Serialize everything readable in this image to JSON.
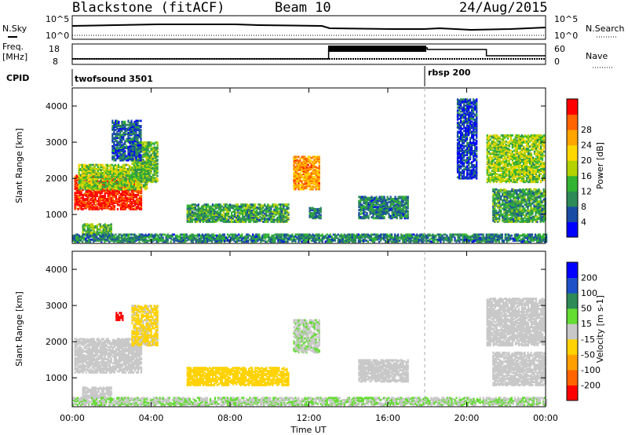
{
  "header": {
    "station": "Blackstone (fitACF)",
    "beam": "Beam 10",
    "date": "24/Aug/2015"
  },
  "noise_panel": {
    "left_label": "N.Sky",
    "right_label": "N.Search",
    "left_ticks": [
      "10^5",
      "10^0"
    ],
    "right_ticks": [
      "10^5",
      "10^0"
    ]
  },
  "freq_panel": {
    "left_label": "Freq.",
    "left_unit": "[MHz]",
    "right_label": "Nave",
    "left_ticks": [
      "18",
      "8"
    ],
    "right_ticks": [
      "60",
      "0"
    ],
    "freq_series": [
      {
        "t": 0,
        "f": 10
      },
      {
        "t": 13,
        "f": 10
      },
      {
        "t": 13,
        "f": 17
      },
      {
        "t": 18,
        "f": 17
      },
      {
        "t": 18,
        "f": 16
      },
      {
        "t": 21,
        "f": 16
      },
      {
        "t": 21,
        "f": 12
      },
      {
        "t": 24,
        "f": 12
      }
    ]
  },
  "cpid": {
    "label": "CPID",
    "modes": [
      {
        "name": "twofsound 3501",
        "start": 0
      },
      {
        "name": "rbsp 200",
        "start": 18
      }
    ]
  },
  "colors": {
    "power": [
      "#0000ff",
      "#1a4ba5",
      "#2e8b57",
      "#32b432",
      "#b4d200",
      "#ffd700",
      "#ffa500",
      "#ff6400",
      "#ff0000"
    ],
    "velocity": [
      "#0000ff",
      "#1e50c8",
      "#2e8b57",
      "#64dc32",
      "#c8c8c8",
      "#ffd200",
      "#ffa000",
      "#ff6400",
      "#ff0000"
    ]
  },
  "chart_data": [
    {
      "type": "heatmap",
      "name": "power",
      "ylabel": "Slant Range [km]",
      "ylim": [
        200,
        4500
      ],
      "xlim": [
        0,
        24
      ],
      "yticks": [
        "1000",
        "2000",
        "3000",
        "4000"
      ],
      "colorbar": {
        "label": "Power [dB]",
        "ticks": [
          "4",
          "8",
          "12",
          "16",
          "20",
          "24",
          "28"
        ],
        "range": [
          0,
          30
        ]
      },
      "regions": [
        {
          "t0": 0.1,
          "t1": 3.5,
          "r0": 1150,
          "r1": 2100,
          "level": 28
        },
        {
          "t0": 0.3,
          "t1": 3.8,
          "r0": 1700,
          "r1": 2400,
          "level": 14
        },
        {
          "t0": 3.0,
          "t1": 4.3,
          "r0": 1900,
          "r1": 3000,
          "level": 12
        },
        {
          "t0": 2.0,
          "t1": 3.5,
          "r0": 2500,
          "r1": 3600,
          "level": 6
        },
        {
          "t0": 0.5,
          "t1": 2.0,
          "r0": 450,
          "r1": 750,
          "level": 12
        },
        {
          "t0": 5.8,
          "t1": 11.0,
          "r0": 800,
          "r1": 1300,
          "level": 10
        },
        {
          "t0": 11.2,
          "t1": 12.5,
          "r0": 1700,
          "r1": 2600,
          "level": 22
        },
        {
          "t0": 12.0,
          "t1": 12.6,
          "r0": 900,
          "r1": 1200,
          "level": 8
        },
        {
          "t0": 14.5,
          "t1": 17.0,
          "r0": 900,
          "r1": 1500,
          "level": 8
        },
        {
          "t0": 21.0,
          "t1": 23.9,
          "r0": 1900,
          "r1": 3200,
          "level": 14
        },
        {
          "t0": 21.3,
          "t1": 24.0,
          "r0": 800,
          "r1": 1700,
          "level": 10
        },
        {
          "t0": 19.5,
          "t1": 20.5,
          "r0": 2000,
          "r1": 4200,
          "level": 4
        },
        {
          "t0": 0.0,
          "t1": 24.0,
          "r0": 250,
          "r1": 450,
          "level": 8
        }
      ]
    },
    {
      "type": "heatmap",
      "name": "velocity",
      "ylabel": "Slant Range [km]",
      "xlabel": "Time UT",
      "ylim": [
        200,
        4500
      ],
      "xlim": [
        0,
        24
      ],
      "yticks": [
        "1000",
        "2000",
        "3000",
        "4000"
      ],
      "xticks": [
        "00:00",
        "04:00",
        "08:00",
        "12:00",
        "16:00",
        "20:00",
        "00:00"
      ],
      "colorbar": {
        "label": "Velocity [m s-1]",
        "ticks": [
          "200",
          "100",
          "50",
          "15",
          "-15",
          "-50",
          "-100",
          "-200"
        ],
        "range": [
          -250,
          250
        ]
      },
      "regions": [
        {
          "t0": 0.1,
          "t1": 3.5,
          "r0": 1150,
          "r1": 2100,
          "level": 0
        },
        {
          "t0": 3.0,
          "t1": 4.3,
          "r0": 1900,
          "r1": 3000,
          "level": -40
        },
        {
          "t0": 2.2,
          "t1": 2.6,
          "r0": 2600,
          "r1": 2800,
          "level": -220
        },
        {
          "t0": 5.8,
          "t1": 11.0,
          "r0": 800,
          "r1": 1300,
          "level": -60
        },
        {
          "t0": 11.2,
          "t1": 12.5,
          "r0": 1700,
          "r1": 2600,
          "level": 20
        },
        {
          "t0": 14.5,
          "t1": 17.0,
          "r0": 900,
          "r1": 1500,
          "level": 0
        },
        {
          "t0": 21.0,
          "t1": 23.9,
          "r0": 1900,
          "r1": 3200,
          "level": 0
        },
        {
          "t0": 21.3,
          "t1": 24.0,
          "r0": 800,
          "r1": 1700,
          "level": 0
        },
        {
          "t0": 0.5,
          "t1": 2.0,
          "r0": 450,
          "r1": 750,
          "level": 0
        },
        {
          "t0": 0.0,
          "t1": 24.0,
          "r0": 250,
          "r1": 450,
          "level": 25
        }
      ]
    }
  ]
}
